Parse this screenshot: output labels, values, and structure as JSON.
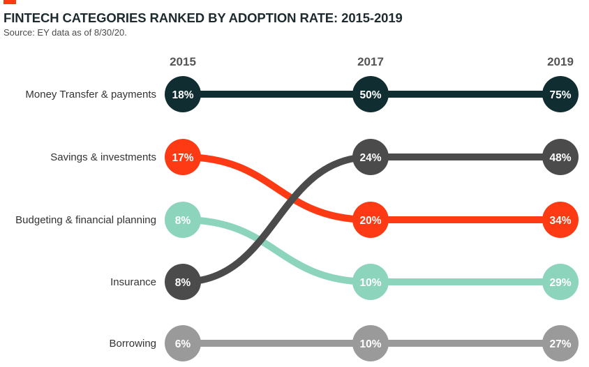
{
  "header": {
    "title": "FINTECH CATEGORIES RANKED BY ADOPTION RATE: 2015-2019",
    "subtitle": "Source: EY data as of 8/30/20."
  },
  "colors": {
    "accent": "#fd3a14",
    "title_text": "#1d2b2e"
  },
  "chart_data": {
    "type": "slope",
    "title": "FINTECH CATEGORIES RANKED BY ADOPTION RATE: 2015-2019",
    "subtitle": "Source: EY data as of 8/30/20.",
    "years": [
      "2015",
      "2017",
      "2019"
    ],
    "rank_labels": [
      "Money Transfer & payments",
      "Savings & investments",
      "Budgeting & financial planning",
      "Insurance",
      "Borrowing"
    ],
    "series": [
      {
        "name": "Money Transfer & payments",
        "color": "#102d31",
        "ranks": [
          1,
          1,
          1
        ],
        "values": [
          "18%",
          "50%",
          "75%"
        ]
      },
      {
        "name": "Savings & investments",
        "color": "#fd3a14",
        "ranks": [
          2,
          3,
          3
        ],
        "values": [
          "17%",
          "20%",
          "34%"
        ]
      },
      {
        "name": "Budgeting & financial planning",
        "color": "#8dd4bc",
        "ranks": [
          3,
          4,
          4
        ],
        "values": [
          "8%",
          "10%",
          "29%"
        ]
      },
      {
        "name": "Insurance",
        "color": "#4b4b4b",
        "ranks": [
          4,
          2,
          2
        ],
        "values": [
          "8%",
          "24%",
          "48%"
        ]
      },
      {
        "name": "Borrowing",
        "color": "#9a9a9a",
        "ranks": [
          5,
          5,
          5
        ],
        "values": [
          "6%",
          "10%",
          "27%"
        ]
      }
    ]
  }
}
